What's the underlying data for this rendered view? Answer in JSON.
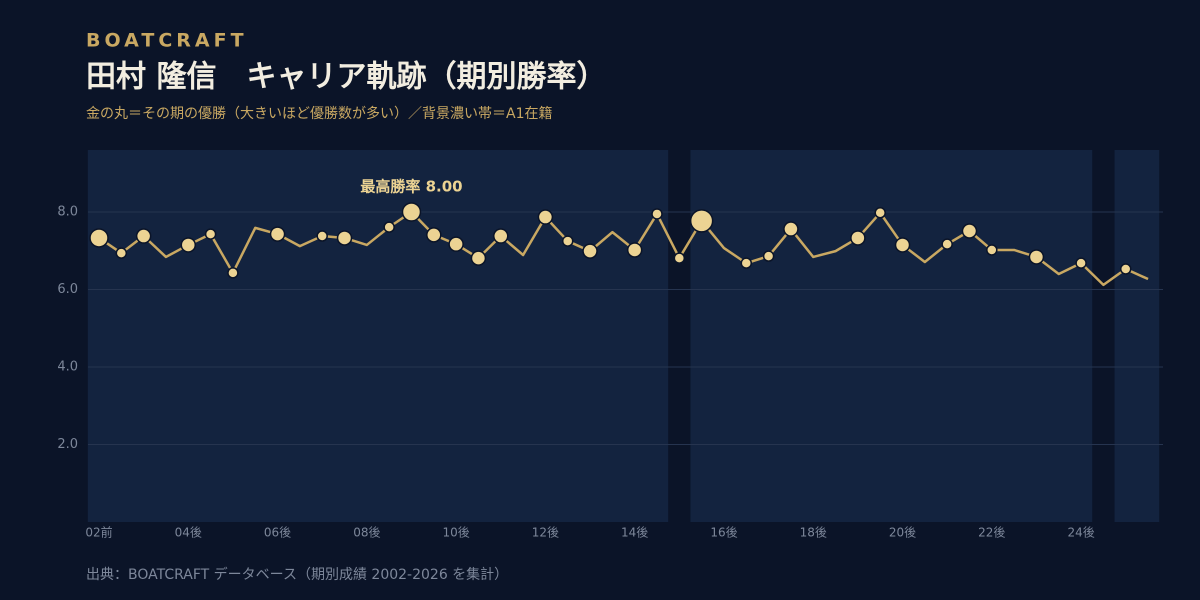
{
  "chart_data": {
    "type": "line",
    "brand": "BOATCRAFT",
    "title": "田村 隆信　キャリア軌跡（期別勝率）",
    "subtitle": "金の丸＝その期の優勝（大きいほど優勝数が多い）／背景濃い帯＝A1在籍",
    "source": "出典：BOATCRAFT データベース（期別成績 2002-2026 を集計）",
    "annotation": "最高勝率 8.00",
    "categories": [
      "02前",
      null,
      null,
      null,
      "04後",
      null,
      null,
      null,
      "06後",
      null,
      null,
      null,
      "08後",
      null,
      null,
      null,
      "10後",
      null,
      null,
      null,
      "12後",
      null,
      null,
      null,
      "14後",
      null,
      null,
      null,
      "16後",
      null,
      null,
      null,
      "18後",
      null,
      null,
      null,
      "20後",
      null,
      null,
      null,
      "22後",
      null,
      null,
      null,
      "24後",
      null,
      null,
      null
    ],
    "values": [
      7.33,
      6.94,
      7.38,
      6.84,
      7.15,
      7.43,
      6.43,
      7.59,
      7.43,
      7.12,
      7.38,
      7.33,
      7.15,
      7.61,
      8.0,
      7.41,
      7.17,
      6.81,
      7.38,
      6.89,
      7.87,
      7.25,
      6.99,
      7.48,
      7.02,
      7.95,
      6.81,
      7.77,
      7.07,
      6.68,
      6.86,
      7.56,
      6.84,
      6.99,
      7.33,
      7.98,
      7.15,
      6.71,
      7.17,
      7.51,
      7.02,
      7.02,
      6.84,
      6.4,
      6.68,
      6.12,
      6.53,
      6.27
    ],
    "wins": [
      3,
      1,
      2,
      0,
      2,
      1,
      1,
      0,
      2,
      0,
      1,
      2,
      0,
      1,
      3,
      2,
      2,
      2,
      2,
      0,
      2,
      1,
      2,
      0,
      2,
      1,
      1,
      4,
      0,
      1,
      1,
      2,
      0,
      0,
      2,
      1,
      2,
      0,
      1,
      2,
      1,
      0,
      2,
      0,
      1,
      0,
      1,
      0
    ],
    "a1_bands": [
      [
        0,
        25
      ],
      [
        27,
        44
      ],
      [
        46,
        47
      ]
    ],
    "color": "#c9a862",
    "marker_color": "#ecd393",
    "ylim": [
      0,
      9.6
    ],
    "yticks": [
      {
        "value": 2,
        "label": "2.0"
      },
      {
        "value": 4,
        "label": "4.0"
      },
      {
        "value": 6,
        "label": "6.0"
      },
      {
        "value": 8,
        "label": "8.0"
      }
    ],
    "grid": true
  }
}
